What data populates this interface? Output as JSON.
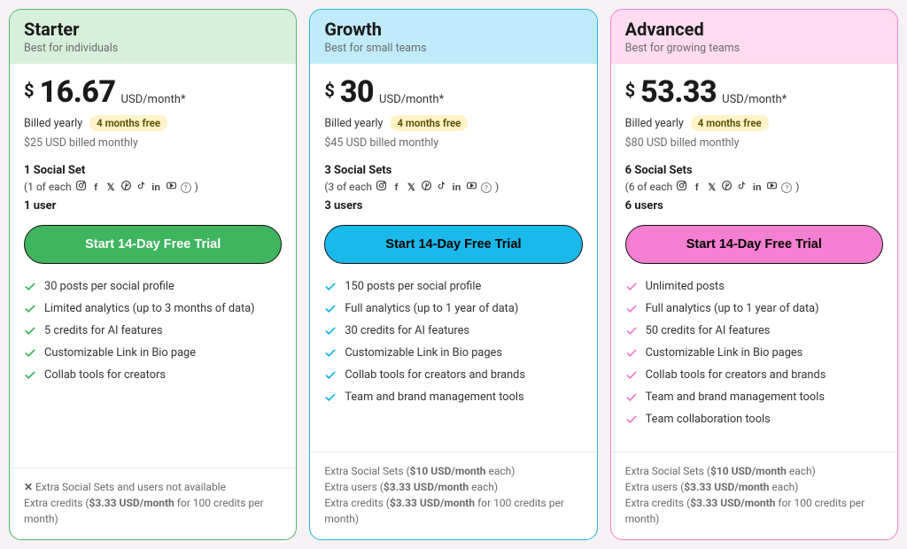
{
  "shared": {
    "currency_symbol": "$",
    "per_label": "USD/month*",
    "billed_yearly": "Billed yearly",
    "months_free_badge": "4 months free",
    "cta_label": "Start 14-Day Free Trial",
    "social_icons": [
      "instagram",
      "facebook",
      "x",
      "pinterest",
      "tiktok",
      "linkedin",
      "youtube",
      "info"
    ]
  },
  "plans": [
    {
      "name": "Starter",
      "tagline": "Best for individuals",
      "head_bg": "#d7f0dc",
      "border": "#4bb764",
      "price": "16.67",
      "alt_price": "$25 USD billed monthly",
      "sets_title": "1 Social Set",
      "sets_prefix": "(1 of each",
      "sets_suffix": ")",
      "users": "1 user",
      "cta_bg": "#3fb55f",
      "cta_text": "#ffffff",
      "check_color": "#3fb55f",
      "features": [
        "30 posts per social profile",
        "Limited analytics (up to 3 months of data)",
        "5 credits for AI features",
        "Customizable Link in Bio page",
        "Collab tools for creators"
      ],
      "footer_type": "starter",
      "footer_line1": "Extra Social Sets and users not available",
      "footer_line2_a": "Extra credits (",
      "footer_line2_b": "$3.33 USD/month",
      "footer_line2_c": " for 100 credits per month)"
    },
    {
      "name": "Growth",
      "tagline": "Best for small teams",
      "head_bg": "#c1ebfb",
      "border": "#1eb8e8",
      "price": "30",
      "alt_price": "$45 USD billed monthly",
      "sets_title": "3 Social Sets",
      "sets_prefix": "(3 of each",
      "sets_suffix": ")",
      "users": "3 users",
      "cta_bg": "#19b9ea",
      "cta_text": "#000000",
      "check_color": "#19b9ea",
      "features": [
        "150 posts per social profile",
        "Full analytics (up to 1 year of data)",
        "30 credits for AI features",
        "Customizable Link in Bio pages",
        "Collab tools for creators and brands",
        "Team and brand management tools"
      ],
      "footer_type": "paid",
      "footer_l1_a": "Extra Social Sets (",
      "footer_l1_b": "$10 USD/month",
      "footer_l1_c": " each)",
      "footer_l2_a": "Extra users (",
      "footer_l2_b": "$3.33 USD/month",
      "footer_l2_c": " each)",
      "footer_l3_a": "Extra credits (",
      "footer_l3_b": "$3.33 USD/month",
      "footer_l3_c": " for 100 credits per month)"
    },
    {
      "name": "Advanced",
      "tagline": "Best for growing teams",
      "head_bg": "#ffdcf1",
      "border": "#f57fd1",
      "price": "53.33",
      "alt_price": "$80 USD billed monthly",
      "sets_title": "6 Social Sets",
      "sets_prefix": "(6 of each",
      "sets_suffix": ")",
      "users": "6 users",
      "cta_bg": "#f57fd1",
      "cta_text": "#000000",
      "check_color": "#f57fd1",
      "features": [
        "Unlimited posts",
        "Full analytics (up to 1 year of data)",
        "50 credits for AI features",
        "Customizable Link in Bio pages",
        "Collab tools for creators and brands",
        "Team and brand management tools",
        "Team collaboration tools"
      ],
      "footer_type": "paid",
      "footer_l1_a": "Extra Social Sets (",
      "footer_l1_b": "$10 USD/month",
      "footer_l1_c": " each)",
      "footer_l2_a": "Extra users (",
      "footer_l2_b": "$3.33 USD/month",
      "footer_l2_c": " each)",
      "footer_l3_a": "Extra credits (",
      "footer_l3_b": "$3.33 USD/month",
      "footer_l3_c": " for 100 credits per month)"
    }
  ]
}
